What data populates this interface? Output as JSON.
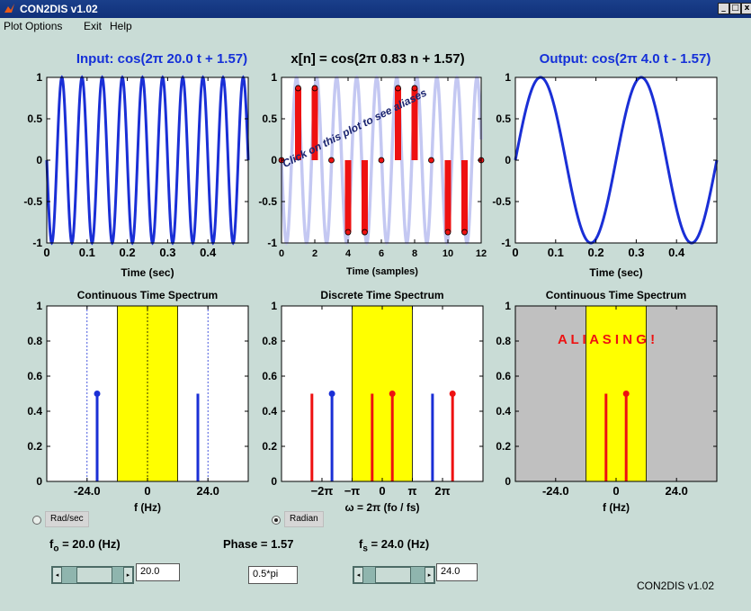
{
  "window": {
    "title": "CON2DIS v1.02",
    "minimize_icon": "minimize-icon",
    "maximize_icon": "maximize-icon",
    "close_icon": "close-icon",
    "min_glyph": "_",
    "max_glyph": "□",
    "close_glyph": "x"
  },
  "menu": [
    "Plot Options",
    "Exit",
    "Help"
  ],
  "titles": {
    "input": "Input: cos(2π 20.0 t + 1.57)",
    "discrete": "x[n] = cos(2π 0.83 n + 1.57)",
    "output": "Output: cos(2π 4.0 t - 1.57)",
    "cont_spec_left": "Continuous Time Spectrum",
    "disc_spec": "Discrete Time Spectrum",
    "cont_spec_right": "Continuous Time Spectrum"
  },
  "labels": {
    "time_sec": "Time (sec)",
    "time_samples": "Time (samples)",
    "f_hz": "f (Hz)",
    "omega": "ω = 2π (fo / fs)"
  },
  "annotations": {
    "click_hint": "Click on this plot to see aliases",
    "aliasing": "A L I A S I N G !"
  },
  "controls": {
    "rad_sec": "Rad/sec",
    "radian": "Radian",
    "fo_label": "fo = 20.0 (Hz)",
    "fo_value": "20.0",
    "phase_label": "Phase = 1.57",
    "phase_value": "0.5*pi",
    "fs_label": "fs = 24.0 (Hz)",
    "fs_value": "24.0",
    "slider_left_glyph": "◂",
    "slider_right_glyph": "▸",
    "fo_slider_fraction": 0.55,
    "fs_slider_fraction": 0.45
  },
  "footer": "CON2DIS v1.02",
  "colors": {
    "title_blue": "#1530d8",
    "stem_blue": "#1a2fd6",
    "stem_red": "#ee1111",
    "band_yellow": "#ffff00",
    "alias_light": "#c4c8f2",
    "shade_gray": "#c0c0c0"
  },
  "chart_data": [
    {
      "id": "input",
      "type": "line",
      "title": "Input: cos(2π 20.0 t + 1.57)",
      "xlabel": "Time (sec)",
      "xlim": [
        0,
        0.5
      ],
      "ylim": [
        -1,
        1
      ],
      "xticks": [
        0,
        0.1,
        0.2,
        0.3,
        0.4
      ],
      "xtick_labels": [
        "0",
        "0.1",
        "0.2",
        "0.3",
        "0.4"
      ],
      "yticks": [
        -1,
        -0.5,
        0,
        0.5,
        1
      ],
      "ytick_labels": [
        "-1",
        "-0.5",
        "0",
        "0.5",
        "1"
      ],
      "series": [
        {
          "func": "cos",
          "freq": 20.0,
          "phase": 1.57
        }
      ]
    },
    {
      "id": "discrete",
      "type": "stem",
      "title": "x[n] = cos(2π 0.83 n + 1.57)",
      "xlabel": "Time (samples)",
      "xlim": [
        0,
        12
      ],
      "ylim": [
        -1,
        1
      ],
      "xticks": [
        0,
        2,
        4,
        6,
        8,
        10,
        12
      ],
      "xtick_labels": [
        "0",
        "2",
        "4",
        "6",
        "8",
        "10",
        "12"
      ],
      "yticks": [
        -1,
        -0.5,
        0,
        0.5,
        1
      ],
      "ytick_labels": [
        "-1",
        "-0.5",
        "0",
        "0.5",
        "1"
      ],
      "background_series": {
        "func": "cos",
        "freq": 0.83,
        "phase": 1.57,
        "color": "alias_light"
      },
      "samples": {
        "n": [
          0,
          1,
          2,
          3,
          4,
          5,
          6,
          7,
          8,
          9,
          10,
          11,
          12
        ],
        "values": [
          0,
          0.87,
          0.87,
          0,
          -0.87,
          -0.87,
          0,
          0.87,
          0.87,
          0,
          -0.87,
          -0.87,
          0
        ]
      }
    },
    {
      "id": "output",
      "type": "line",
      "title": "Output: cos(2π 4.0 t - 1.57)",
      "xlabel": "Time (sec)",
      "xlim": [
        0,
        0.5
      ],
      "ylim": [
        -1,
        1
      ],
      "xticks": [
        0,
        0.1,
        0.2,
        0.3,
        0.4
      ],
      "xtick_labels": [
        "0",
        "0.1",
        "0.2",
        "0.3",
        "0.4"
      ],
      "yticks": [
        -1,
        -0.5,
        0,
        0.5,
        1
      ],
      "ytick_labels": [
        "-1",
        "-0.5",
        "0",
        "0.5",
        "1"
      ],
      "series": [
        {
          "func": "cos",
          "freq": 4.0,
          "phase": -1.57
        }
      ]
    },
    {
      "id": "cont_left",
      "type": "stem",
      "title": "Continuous Time Spectrum",
      "xlabel": "f (Hz)",
      "xlim": [
        -40,
        40
      ],
      "ylim": [
        0,
        1
      ],
      "xticks": [
        -24,
        0,
        24
      ],
      "xtick_labels": [
        "-24.0",
        "0",
        "24.0"
      ],
      "yticks": [
        0,
        0.2,
        0.4,
        0.6,
        0.8,
        1
      ],
      "ytick_labels": [
        "0",
        "0.2",
        "0.4",
        "0.6",
        "0.8",
        "1"
      ],
      "band": [
        -12,
        12
      ],
      "dashed_lines": [
        -24,
        0,
        24
      ],
      "stems": [
        {
          "x": -20,
          "y": 0.5,
          "marker": true
        },
        {
          "x": 20,
          "y": 0.5,
          "marker": false
        }
      ]
    },
    {
      "id": "disc_spec",
      "type": "stem",
      "title": "Discrete Time Spectrum",
      "xlabel": "ω = 2π (fo / fs)",
      "xlim": [
        -10.5,
        10.5
      ],
      "ylim": [
        0,
        1
      ],
      "xticks": [
        -6.283,
        -3.1416,
        0,
        3.1416,
        6.283
      ],
      "xtick_labels": [
        "−2π",
        "−π",
        "0",
        "π",
        "2π"
      ],
      "yticks": [
        0,
        0.2,
        0.4,
        0.6,
        0.8,
        1
      ],
      "ytick_labels": [
        "0",
        "0.2",
        "0.4",
        "0.6",
        "0.8",
        "1"
      ],
      "band": [
        -3.1416,
        3.1416
      ],
      "stems": [
        {
          "x": -7.33,
          "y": 0.5,
          "color": "red",
          "marker": false
        },
        {
          "x": -5.24,
          "y": 0.5,
          "color": "blue",
          "marker": true
        },
        {
          "x": -1.05,
          "y": 0.5,
          "color": "red",
          "marker": false
        },
        {
          "x": 1.05,
          "y": 0.5,
          "color": "red",
          "marker": true
        },
        {
          "x": 5.24,
          "y": 0.5,
          "color": "blue",
          "marker": false
        },
        {
          "x": 7.33,
          "y": 0.5,
          "color": "red",
          "marker": true
        }
      ]
    },
    {
      "id": "cont_right",
      "type": "stem",
      "title": "Continuous Time Spectrum",
      "xlabel": "f (Hz)",
      "xlim": [
        -40,
        40
      ],
      "ylim": [
        0,
        1
      ],
      "xticks": [
        -24,
        0,
        24
      ],
      "xtick_labels": [
        "-24.0",
        "0",
        "24.0"
      ],
      "yticks": [
        0,
        0.2,
        0.4,
        0.6,
        0.8,
        1
      ],
      "ytick_labels": [
        "0",
        "0.2",
        "0.4",
        "0.6",
        "0.8",
        "1"
      ],
      "band": [
        -12,
        12
      ],
      "shaded_outside": true,
      "stems": [
        {
          "x": -4,
          "y": 0.5,
          "color": "red",
          "marker": false
        },
        {
          "x": 4,
          "y": 0.5,
          "color": "red",
          "marker": true
        }
      ]
    }
  ]
}
